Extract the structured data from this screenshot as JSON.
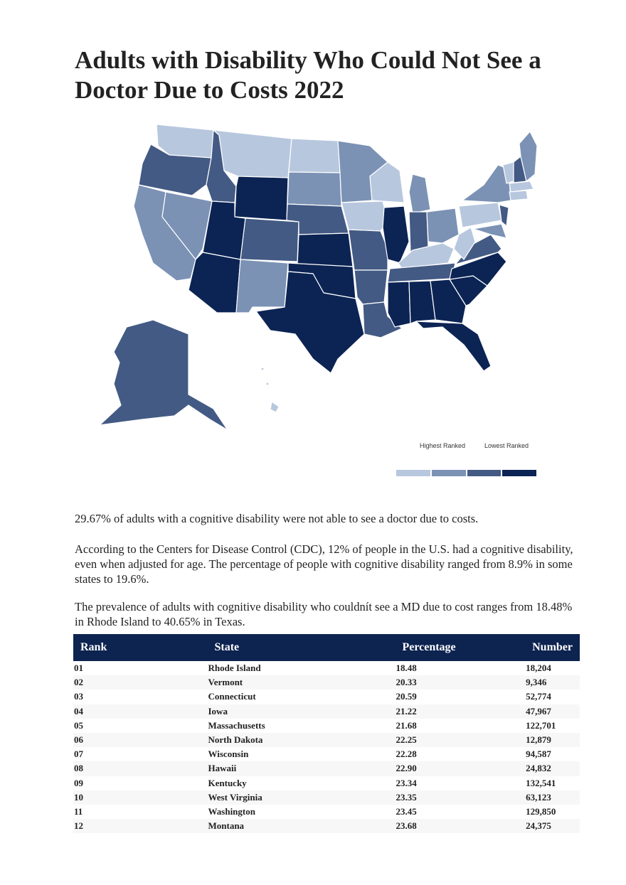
{
  "title": "Adults with Disability Who Could Not See a Doctor Due to Costs 2022",
  "legend": {
    "highest_label": "Highest Ranked",
    "lowest_label": "Lowest Ranked",
    "colors": [
      "#b7c7de",
      "#7b92b5",
      "#435a84",
      "#0c2454"
    ]
  },
  "paragraphs": [
    "29.67% of adults with a cognitive disability were not able to see a doctor due to costs.",
    "According to the Centers for Disease Control (CDC), 12% of people in the U.S. had a cognitive disability, even when adjusted for age. The percentage of people with cognitive disability ranged from 8.9% in some states to 19.6%.",
    "The prevalence of adults with cognitive disability who couldnít see a MD due to cost ranges from 18.48% in Rhode Island to 40.65% in Texas."
  ],
  "table": {
    "headers": [
      "Rank",
      "State",
      "Percentage",
      "Number"
    ],
    "rows": [
      [
        "01",
        "Rhode Island",
        "18.48",
        "18,204"
      ],
      [
        "02",
        "Vermont",
        "20.33",
        "9,346"
      ],
      [
        "03",
        "Connecticut",
        "20.59",
        "52,774"
      ],
      [
        "04",
        "Iowa",
        "21.22",
        "47,967"
      ],
      [
        "05",
        "Massachusetts",
        "21.68",
        "122,701"
      ],
      [
        "06",
        "North Dakota",
        "22.25",
        "12,879"
      ],
      [
        "07",
        "Wisconsin",
        "22.28",
        "94,587"
      ],
      [
        "08",
        "Hawaii",
        "22.90",
        "24,832"
      ],
      [
        "09",
        "Kentucky",
        "23.34",
        "132,541"
      ],
      [
        "10",
        "West Virginia",
        "23.35",
        "63,123"
      ],
      [
        "11",
        "Washington",
        "23.45",
        "129,850"
      ],
      [
        "12",
        "Montana",
        "23.68",
        "24,375"
      ]
    ]
  }
}
